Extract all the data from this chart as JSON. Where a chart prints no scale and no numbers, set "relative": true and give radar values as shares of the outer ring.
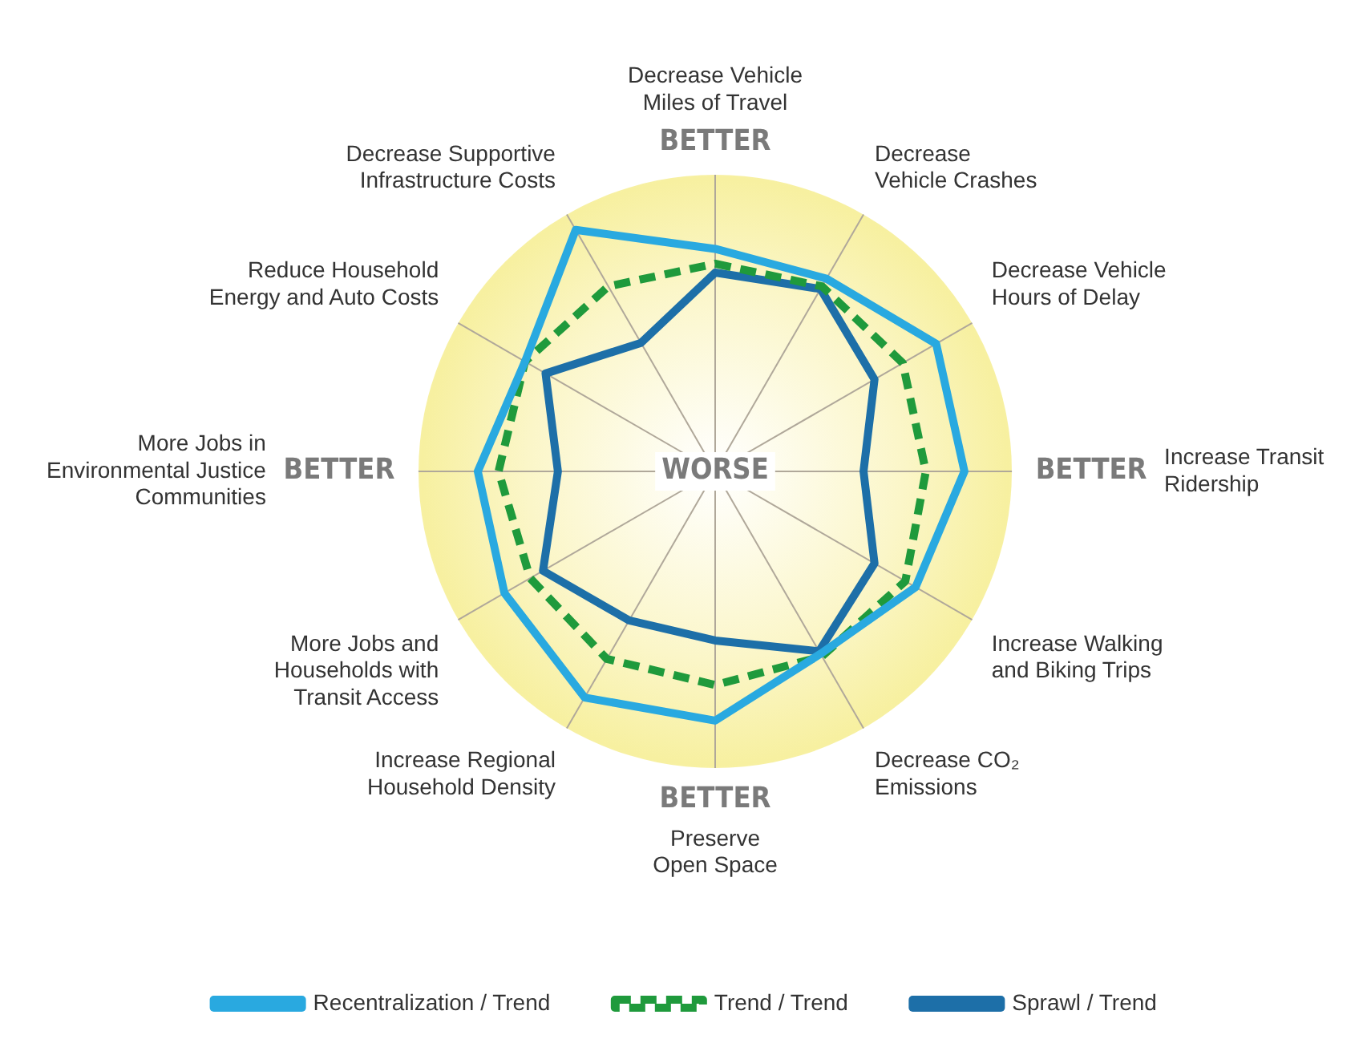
{
  "chart_data": {
    "type": "radar",
    "relative": true,
    "grid": false,
    "legend": "bottom",
    "marker": "none",
    "categories": [
      "Decrease Vehicle\nMiles of Travel",
      "Decrease\nVehicle Crashes",
      "Decrease Vehicle\nHours of Delay",
      "Increase Transit\nRidership",
      "Increase Walking\nand Biking Trips",
      "Decrease CO₂\nEmissions",
      "Preserve\nOpen Space",
      "Increase Regional\nHousehold Density",
      "More Jobs and\nHouseholds with\nTransit Access",
      "More Jobs in\nEnvironmental Justice\nCommunities",
      "Reduce Household\nEnergy and Auto Costs",
      "Decrease Supportive\nInfrastructure Costs"
    ],
    "series": [
      {
        "name": "Recentralization / Trend",
        "color": "#29a9e0",
        "line_style": "solid",
        "values": [
          0.75,
          0.75,
          0.86,
          0.84,
          0.78,
          0.71,
          0.84,
          0.88,
          0.82,
          0.8,
          0.74,
          0.94
        ]
      },
      {
        "name": "Trend / Trend",
        "color": "#1f9a3c",
        "line_style": "dashed",
        "values": [
          0.7,
          0.72,
          0.73,
          0.71,
          0.74,
          0.72,
          0.72,
          0.73,
          0.72,
          0.73,
          0.74,
          0.72
        ]
      },
      {
        "name": "Sprawl / Trend",
        "color": "#1d6fa8",
        "line_style": "solid",
        "values": [
          0.67,
          0.71,
          0.62,
          0.5,
          0.62,
          0.7,
          0.57,
          0.58,
          0.67,
          0.53,
          0.66,
          0.5
        ]
      }
    ],
    "annotations": [
      "BETTER",
      "BETTER",
      "BETTER",
      "BETTER",
      "WORSE"
    ]
  }
}
